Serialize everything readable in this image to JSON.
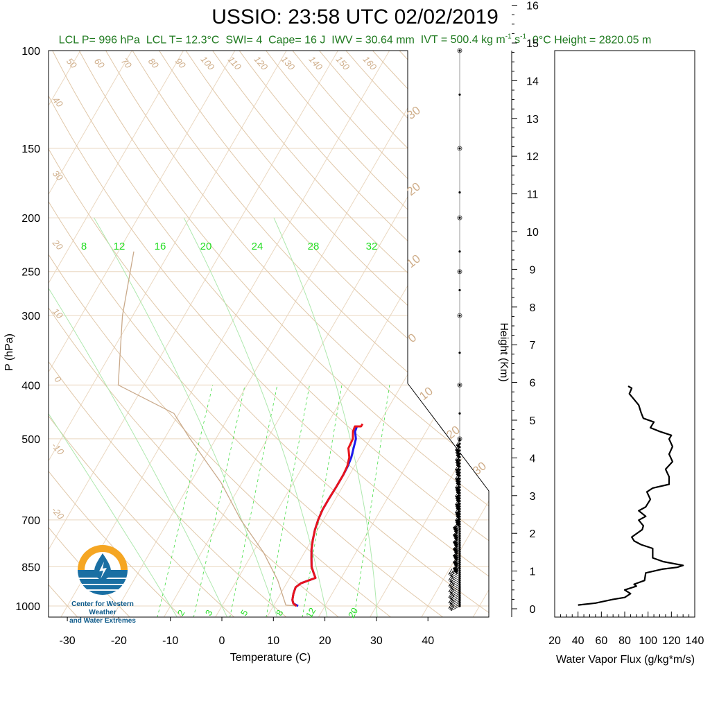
{
  "header": {
    "title": "USSIO: 23:58 UTC 02/02/2019",
    "lcl_p": "LCL P= 996 hPa",
    "lcl_t": "LCL T= 12.3°C",
    "swi": "SWI= 4",
    "cape": "Cape= 16 J",
    "iwv": "IWV = 30.64 mm",
    "ivt_prefix": "IVT = 500.4 kg m",
    "ivt_exp1": "-1",
    "ivt_mid": " s",
    "ivt_exp2": "-1",
    "zero_height": "0°C Height = 2820.05 m"
  },
  "logo": {
    "line1": "Center for Western Weather",
    "line2": "and Water Extremes",
    "colors": {
      "orange": "#f5a623",
      "blue": "#1a6fa3"
    }
  },
  "chart_data": [
    {
      "type": "line",
      "subtype": "skew-T log-P sounding",
      "xlabel": "Temperature (C)",
      "ylabel": "P (hPa)",
      "x_ticks": [
        -30,
        -20,
        -10,
        0,
        10,
        20,
        30,
        40
      ],
      "p_ticks": [
        100,
        150,
        200,
        250,
        300,
        400,
        500,
        700,
        850,
        1000
      ],
      "mixing_ratio_labels": [
        "8",
        "12",
        "16",
        "20",
        "24",
        "28",
        "32"
      ],
      "mixing_ratio_labels_bottom": [
        "2",
        "3",
        "5",
        "8",
        "12",
        "20"
      ],
      "dry_adiabat_labels": [
        "50",
        "60",
        "70",
        "80",
        "90",
        "100",
        "110",
        "120",
        "130",
        "140",
        "150",
        "160"
      ],
      "dry_adiabat_left_labels": [
        "40",
        "30",
        "20",
        "10",
        "0",
        "-10",
        "-20"
      ],
      "moist_adiabat_labels": [
        "30",
        "20",
        "10",
        "0",
        "10",
        "20",
        "30"
      ],
      "temperature": {
        "name": "Temperature",
        "color": "#e8141c",
        "points": [
          [
            14.5,
            1000
          ],
          [
            13.6,
            990
          ],
          [
            13.0,
            975
          ],
          [
            12.5,
            950
          ],
          [
            12.2,
            925
          ],
          [
            12.8,
            910
          ],
          [
            15.0,
            890
          ],
          [
            14.5,
            880
          ],
          [
            14.0,
            870
          ],
          [
            13.0,
            850
          ],
          [
            12.0,
            820
          ],
          [
            11.0,
            790
          ],
          [
            10.2,
            760
          ],
          [
            9.5,
            730
          ],
          [
            9.0,
            700
          ],
          [
            8.7,
            670
          ],
          [
            8.7,
            640
          ],
          [
            8.8,
            610
          ],
          [
            8.8,
            580
          ],
          [
            8.6,
            560
          ],
          [
            8.0,
            540
          ],
          [
            6.8,
            520
          ],
          [
            6.6,
            500
          ],
          [
            5.8,
            485
          ],
          [
            5.6,
            475
          ],
          [
            6.8,
            475
          ],
          [
            6.8,
            470
          ]
        ]
      },
      "dewpoint": {
        "name": "Dewpoint",
        "color": "#1a1aee",
        "points": [
          [
            14.8,
            1000
          ],
          [
            13.6,
            990
          ],
          [
            13.0,
            975
          ],
          [
            12.5,
            950
          ],
          [
            12.2,
            925
          ],
          [
            12.8,
            910
          ],
          [
            15.0,
            890
          ],
          [
            14.5,
            880
          ],
          [
            14.0,
            870
          ],
          [
            13.0,
            850
          ],
          [
            12.0,
            820
          ],
          [
            11.0,
            790
          ],
          [
            10.2,
            760
          ],
          [
            9.5,
            730
          ],
          [
            9.0,
            700
          ],
          [
            8.7,
            670
          ],
          [
            8.7,
            640
          ],
          [
            8.8,
            610
          ],
          [
            8.8,
            580
          ],
          [
            8.7,
            560
          ],
          [
            8.4,
            540
          ],
          [
            7.8,
            520
          ],
          [
            7.2,
            500
          ],
          [
            6.2,
            485
          ],
          [
            6.0,
            475
          ]
        ]
      },
      "parcel_path": {
        "name": "Parcel",
        "color": "#c9a98a",
        "points": [
          [
            14.5,
            1000
          ],
          [
            12.3,
            996
          ],
          [
            8,
            900
          ],
          [
            2,
            800
          ],
          [
            -6,
            700
          ],
          [
            -14,
            600
          ],
          [
            -25,
            500
          ],
          [
            -31,
            450
          ],
          [
            -45,
            400
          ],
          [
            -52,
            300
          ],
          [
            -57,
            230
          ]
        ]
      },
      "wind_barb_column_x_c": 46
    },
    {
      "type": "line",
      "ylabel": "Height (Km)",
      "y_ticks": [
        0,
        1,
        2,
        3,
        4,
        5,
        6,
        7,
        8,
        9,
        10,
        11,
        12,
        13,
        14,
        15,
        16
      ],
      "xlabel": "Water Vapor Flux (g/kg*m/s)",
      "x_ticks": [
        20,
        40,
        60,
        80,
        100,
        120,
        140
      ],
      "xlim": [
        20,
        140
      ],
      "ylim": [
        0,
        16.5
      ],
      "series": [
        {
          "name": "Water Vapor Flux",
          "points": [
            [
              40,
              0.1
            ],
            [
              55,
              0.15
            ],
            [
              70,
              0.25
            ],
            [
              80,
              0.3
            ],
            [
              85,
              0.4
            ],
            [
              80,
              0.5
            ],
            [
              90,
              0.6
            ],
            [
              88,
              0.65
            ],
            [
              97,
              0.75
            ],
            [
              98,
              0.95
            ],
            [
              112,
              1.05
            ],
            [
              125,
              1.1
            ],
            [
              130,
              1.15
            ],
            [
              113,
              1.25
            ],
            [
              104,
              1.35
            ],
            [
              104,
              1.6
            ],
            [
              94,
              1.7
            ],
            [
              88,
              1.8
            ],
            [
              86,
              1.9
            ],
            [
              95,
              2.1
            ],
            [
              96,
              2.2
            ],
            [
              92,
              2.35
            ],
            [
              98,
              2.45
            ],
            [
              92,
              2.6
            ],
            [
              98,
              2.7
            ],
            [
              102,
              2.9
            ],
            [
              99,
              3.1
            ],
            [
              104,
              3.2
            ],
            [
              118,
              3.3
            ],
            [
              118,
              3.5
            ],
            [
              115,
              3.7
            ],
            [
              121,
              3.9
            ],
            [
              118,
              4.1
            ],
            [
              121,
              4.3
            ],
            [
              118,
              4.5
            ],
            [
              120,
              4.6
            ],
            [
              110,
              4.7
            ],
            [
              102,
              4.8
            ],
            [
              105,
              4.95
            ],
            [
              96,
              5.05
            ],
            [
              94,
              5.2
            ],
            [
              92,
              5.4
            ],
            [
              88,
              5.55
            ],
            [
              84,
              5.7
            ],
            [
              86,
              5.85
            ],
            [
              83,
              5.9
            ]
          ]
        }
      ]
    }
  ]
}
